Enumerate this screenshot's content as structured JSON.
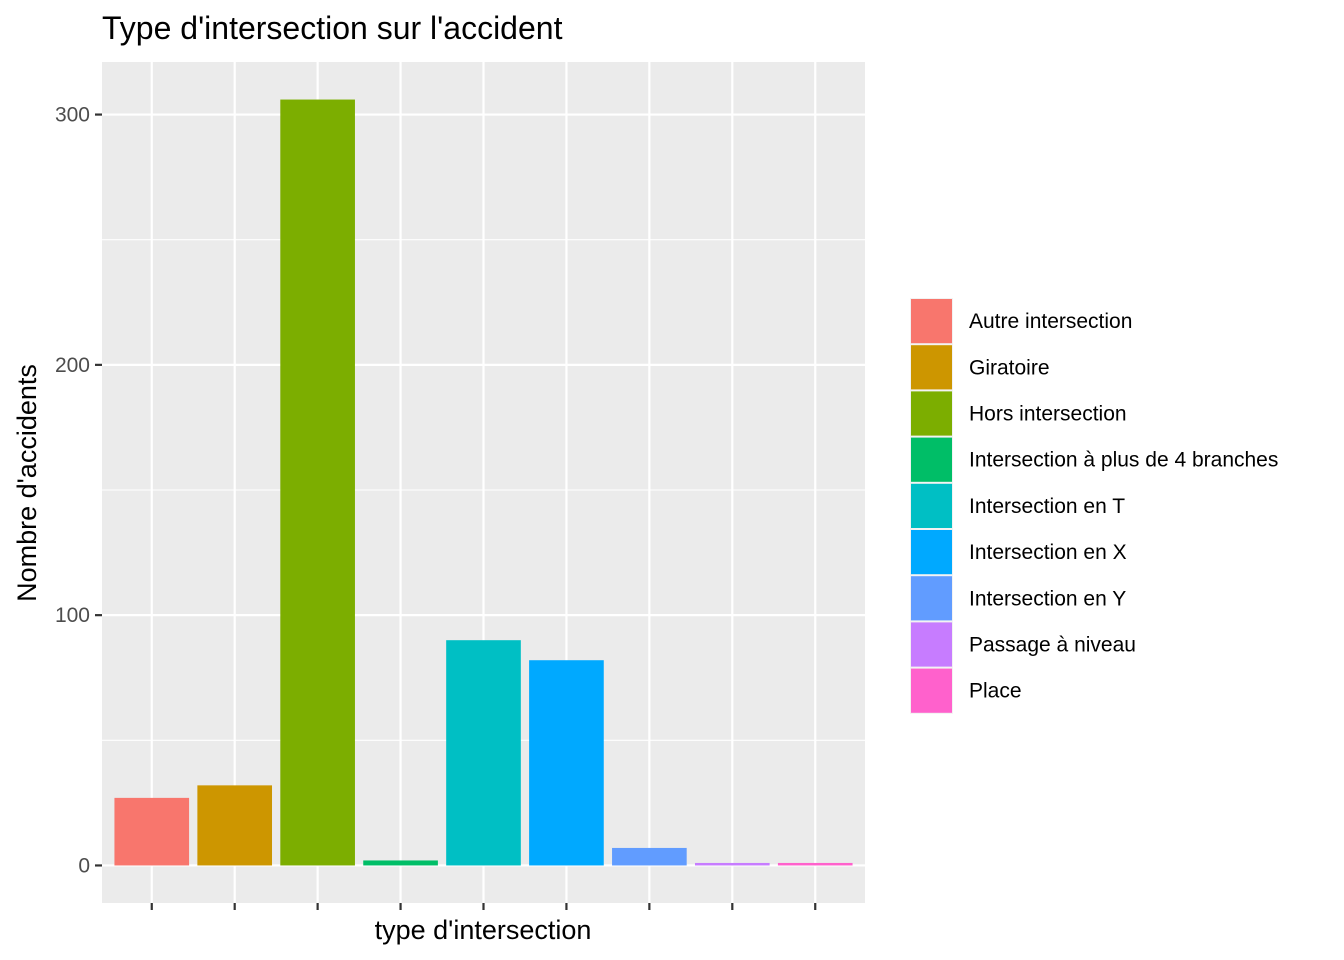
{
  "chart_data": {
    "type": "bar",
    "title": "Type d'intersection sur l'accident",
    "xlabel": "type d'intersection",
    "ylabel": "Nombre d'accidents",
    "categories": [
      "Autre intersection",
      "Giratoire",
      "Hors intersection",
      "Intersection à plus de 4 branches",
      "Intersection en T",
      "Intersection en X",
      "Intersection en Y",
      "Passage à niveau",
      "Place"
    ],
    "values": [
      27,
      32,
      306,
      2,
      90,
      82,
      7,
      1,
      1
    ],
    "colors": [
      "#F8766D",
      "#CD9600",
      "#7CAE00",
      "#00BE67",
      "#00BFC4",
      "#00A9FF",
      "#619CFF",
      "#C77CFF",
      "#FF61CC"
    ],
    "ylim": [
      -15,
      321
    ],
    "yticks": [
      0,
      100,
      200,
      300
    ],
    "ytick_labels": [
      "0",
      "100",
      "200",
      "300"
    ],
    "grid": true,
    "legend_position": "right",
    "background": "#EBEBEB"
  }
}
